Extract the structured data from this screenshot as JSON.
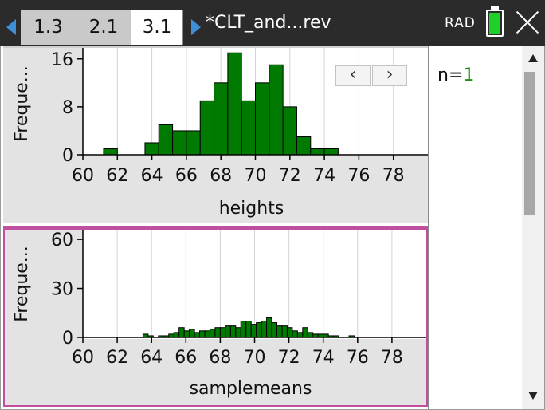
{
  "tabs": [
    {
      "label": "1.3",
      "active": false
    },
    {
      "label": "2.1",
      "active": false
    },
    {
      "label": "3.1",
      "active": true
    }
  ],
  "document": {
    "title": "*CLT_and...rev"
  },
  "status": {
    "mode": "RAD",
    "battery_icon": "battery-full-icon",
    "battery_color": "#1fcf2a"
  },
  "colors": {
    "bar_fill": "#007a00",
    "bar_stroke": "#000000",
    "panel_bg": "#e3e3e3",
    "active_border": "#c0509f",
    "value_text": "#1d8c16"
  },
  "nav": {
    "prev": "‹",
    "next": "›"
  },
  "right_panel": {
    "n_label": "n=",
    "n_value": "1"
  },
  "chart_data": [
    {
      "type": "bar",
      "ylabel": "Freque...",
      "xlabel": "heights",
      "yticks": [
        0,
        8,
        16
      ],
      "ylim": [
        0,
        16.5
      ],
      "xlim": [
        60,
        80
      ],
      "xticks": [
        60,
        62,
        64,
        66,
        68,
        70,
        72,
        74,
        76,
        78
      ],
      "bin_width": 0.8,
      "bins": [
        {
          "x": 61.2,
          "y": 1
        },
        {
          "x": 62.0,
          "y": 0
        },
        {
          "x": 62.8,
          "y": 0
        },
        {
          "x": 63.6,
          "y": 2
        },
        {
          "x": 64.4,
          "y": 5
        },
        {
          "x": 65.2,
          "y": 4
        },
        {
          "x": 66.0,
          "y": 4
        },
        {
          "x": 66.8,
          "y": 9
        },
        {
          "x": 67.6,
          "y": 12
        },
        {
          "x": 68.4,
          "y": 17
        },
        {
          "x": 69.2,
          "y": 9
        },
        {
          "x": 70.0,
          "y": 12
        },
        {
          "x": 70.8,
          "y": 15
        },
        {
          "x": 71.6,
          "y": 8
        },
        {
          "x": 72.4,
          "y": 3
        },
        {
          "x": 73.2,
          "y": 1
        },
        {
          "x": 74.0,
          "y": 1
        }
      ]
    },
    {
      "type": "bar",
      "ylabel": "Freque...",
      "xlabel": "samplemeans",
      "yticks": [
        0,
        30,
        60
      ],
      "ylim": [
        0,
        62
      ],
      "xlim": [
        60,
        80
      ],
      "xticks": [
        60,
        62,
        64,
        66,
        68,
        70,
        72,
        74,
        76,
        78
      ],
      "bin_width": 0.3,
      "bins": [
        {
          "x": 63.5,
          "y": 2
        },
        {
          "x": 63.8,
          "y": 1
        },
        {
          "x": 64.1,
          "y": 0
        },
        {
          "x": 64.4,
          "y": 1
        },
        {
          "x": 64.7,
          "y": 1
        },
        {
          "x": 65.0,
          "y": 2
        },
        {
          "x": 65.3,
          "y": 3
        },
        {
          "x": 65.6,
          "y": 6
        },
        {
          "x": 65.9,
          "y": 4
        },
        {
          "x": 66.2,
          "y": 5
        },
        {
          "x": 66.5,
          "y": 3
        },
        {
          "x": 66.8,
          "y": 4
        },
        {
          "x": 67.1,
          "y": 4
        },
        {
          "x": 67.4,
          "y": 5
        },
        {
          "x": 67.7,
          "y": 6
        },
        {
          "x": 68.0,
          "y": 6
        },
        {
          "x": 68.3,
          "y": 7
        },
        {
          "x": 68.6,
          "y": 7
        },
        {
          "x": 68.9,
          "y": 6
        },
        {
          "x": 69.2,
          "y": 10
        },
        {
          "x": 69.5,
          "y": 10
        },
        {
          "x": 69.8,
          "y": 8
        },
        {
          "x": 70.1,
          "y": 9
        },
        {
          "x": 70.4,
          "y": 10
        },
        {
          "x": 70.7,
          "y": 12
        },
        {
          "x": 71.0,
          "y": 9
        },
        {
          "x": 71.3,
          "y": 7
        },
        {
          "x": 71.6,
          "y": 7
        },
        {
          "x": 71.9,
          "y": 6
        },
        {
          "x": 72.2,
          "y": 4
        },
        {
          "x": 72.5,
          "y": 3
        },
        {
          "x": 72.8,
          "y": 6
        },
        {
          "x": 73.1,
          "y": 3
        },
        {
          "x": 73.4,
          "y": 2
        },
        {
          "x": 73.7,
          "y": 2
        },
        {
          "x": 74.0,
          "y": 2
        },
        {
          "x": 74.3,
          "y": 1
        },
        {
          "x": 74.6,
          "y": 1
        },
        {
          "x": 74.9,
          "y": 0
        },
        {
          "x": 75.2,
          "y": 0
        },
        {
          "x": 75.5,
          "y": 1
        }
      ]
    }
  ]
}
